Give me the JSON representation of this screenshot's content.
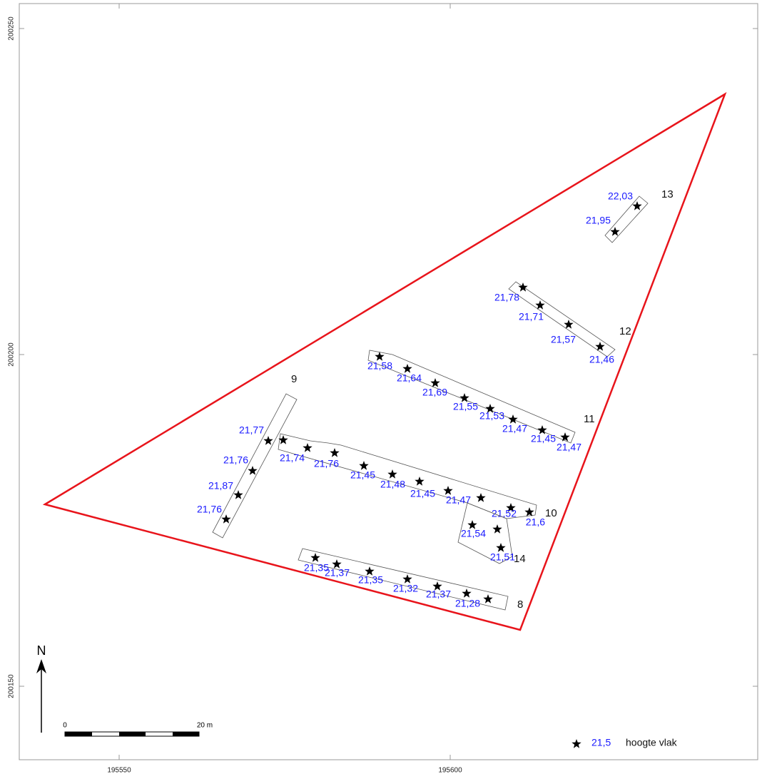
{
  "axes": {
    "x_labels": [
      "195550",
      "195600"
    ],
    "y_labels": [
      "200250",
      "200200",
      "200150"
    ]
  },
  "trenches": [
    {
      "label": "13",
      "heights": [
        "22,03",
        "21,95"
      ]
    },
    {
      "label": "12",
      "heights": [
        "21,78",
        "21,71",
        "21,57",
        "21,46"
      ]
    },
    {
      "label": "11",
      "heights": [
        "21,58",
        "21,64",
        "21,69",
        "21,55",
        "21,53",
        "21,47",
        "21,45",
        "21,47"
      ]
    },
    {
      "label": "9",
      "heights": [
        "21,77",
        "21,76",
        "21,87",
        "21,76"
      ]
    },
    {
      "label": "10",
      "heights": [
        "21,74",
        "21,76",
        "21,45",
        "21,48",
        "21,45",
        "21,47",
        "21,52",
        "21,6"
      ]
    },
    {
      "label": "14",
      "heights": [
        "21,54",
        "21,51"
      ]
    },
    {
      "label": "8",
      "heights": [
        "21,35",
        "21,37",
        "21,35",
        "21,32",
        "21,37",
        "21,28"
      ]
    }
  ],
  "north": "N",
  "scale": {
    "start": "0",
    "end": "20 m"
  },
  "legend": {
    "sample": "21,5",
    "label": "hoogte vlak"
  }
}
